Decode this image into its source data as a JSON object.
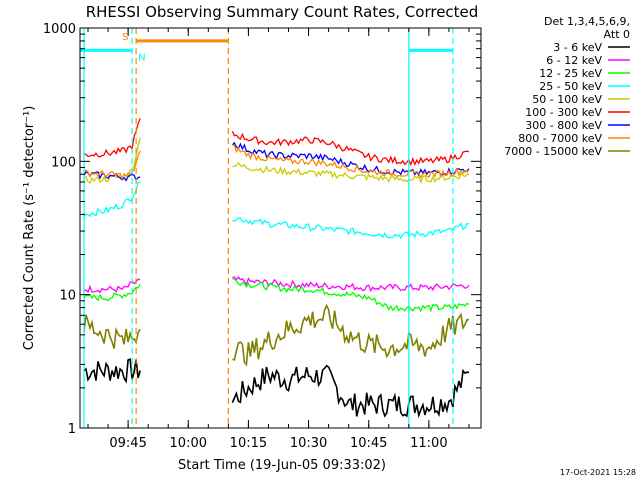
{
  "chart_data": {
    "type": "line",
    "title": "RHESSI Observing Summary Count Rates, Corrected",
    "xlabel": "Start Time (19-Jun-05 09:33:02)",
    "ylabel": "Corrected Count Rate (s⁻¹ detector⁻¹)",
    "y_scale": "log",
    "ylim": [
      1,
      1000
    ],
    "xlim": [
      "09:33",
      "11:13"
    ],
    "x_ticks": [
      "09:45",
      "10:00",
      "10:15",
      "10:30",
      "10:45",
      "11:00"
    ],
    "y_ticks": [
      "1",
      "10",
      "100",
      "1000"
    ],
    "legend_title": [
      "Det 1,3,4,5,6,9,",
      "Att 0"
    ],
    "legend_position": "right",
    "timestamp": "17-Oct-2021 15:28",
    "x": [
      "09:34",
      "09:40",
      "09:44",
      "09:46",
      "09:48",
      "10:11",
      "10:15",
      "10:20",
      "10:25",
      "10:30",
      "10:35",
      "10:40",
      "10:45",
      "10:50",
      "10:55",
      "11:00",
      "11:05",
      "11:10"
    ],
    "series": [
      {
        "name": "3 - 6 keV",
        "color": "#000000",
        "values": [
          2.7,
          2.7,
          2.7,
          2.7,
          2.7,
          1.6,
          2.0,
          2.5,
          2.3,
          2.5,
          2.4,
          1.5,
          1.5,
          1.5,
          1.5,
          1.5,
          1.6,
          2.6
        ]
      },
      {
        "name": "6 - 12 keV",
        "color": "#ff00ff",
        "values": [
          11,
          11,
          11,
          12,
          13,
          13,
          12.5,
          12.3,
          12,
          11.8,
          11.6,
          11.5,
          11.3,
          11.3,
          11.3,
          11.3,
          11.5,
          11.8
        ]
      },
      {
        "name": "12 - 25 keV",
        "color": "#00ff00",
        "values": [
          9.5,
          9.5,
          10,
          10.5,
          12,
          13,
          12,
          11.5,
          11,
          11,
          10.5,
          10,
          9.5,
          8,
          8,
          8,
          8,
          8.5
        ]
      },
      {
        "name": "25 - 50 keV",
        "color": "#00ffff",
        "values": [
          40,
          43,
          48,
          55,
          70,
          38,
          36,
          34,
          33,
          32,
          31,
          30,
          29,
          28,
          28,
          29,
          30,
          34
        ]
      },
      {
        "name": "50 - 100 keV",
        "color": "#cccc00",
        "values": [
          72,
          74,
          78,
          85,
          150,
          95,
          90,
          86,
          84,
          82,
          80,
          78,
          76,
          74,
          73,
          74,
          76,
          80
        ]
      },
      {
        "name": "100 - 300 keV",
        "color": "#ff0000",
        "values": [
          112,
          115,
          120,
          130,
          210,
          160,
          148,
          138,
          140,
          145,
          138,
          122,
          108,
          102,
          100,
          100,
          104,
          118
        ]
      },
      {
        "name": "300 - 800 keV",
        "color": "#0000ff",
        "values": [
          80,
          78,
          76,
          76,
          76,
          138,
          122,
          112,
          110,
          110,
          105,
          96,
          88,
          84,
          82,
          82,
          84,
          88
        ]
      },
      {
        "name": "800 - 7000 keV",
        "color": "#ff8800",
        "values": [
          82,
          80,
          78,
          80,
          120,
          128,
          112,
          104,
          100,
          100,
          96,
          90,
          84,
          82,
          80,
          80,
          82,
          86
        ]
      },
      {
        "name": "7000 - 15000 keV",
        "color": "#808000",
        "values": [
          6.0,
          5.0,
          4.5,
          4.8,
          5.5,
          4.0,
          3.6,
          4.5,
          5.5,
          6.5,
          6.8,
          5.0,
          4.2,
          4.0,
          4.2,
          4.0,
          5.5,
          6.5
        ]
      }
    ],
    "annotations": [
      {
        "label": "S",
        "color": "#ff8800",
        "level": 800,
        "x_start": "09:47",
        "x_end": "10:10"
      },
      {
        "label": "N",
        "color": "#00ffff",
        "level": 680,
        "x_start": "09:33",
        "x_end": "09:46"
      },
      {
        "label": "",
        "color": "#00ffff",
        "level": 680,
        "x_start": "10:55",
        "x_end": "11:06"
      }
    ],
    "vlines": [
      {
        "x": "09:34",
        "color": "#00ffff",
        "style": "solid"
      },
      {
        "x": "09:46",
        "color": "#00ffff",
        "style": "dashed"
      },
      {
        "x": "09:47",
        "color": "#ff8800",
        "style": "dashed"
      },
      {
        "x": "10:10",
        "color": "#ff8800",
        "style": "dashed"
      },
      {
        "x": "10:55",
        "color": "#00ffff",
        "style": "solid"
      },
      {
        "x": "11:06",
        "color": "#00ffff",
        "style": "dashed"
      }
    ],
    "gaps": [
      [
        "09:48",
        "10:11"
      ]
    ]
  }
}
